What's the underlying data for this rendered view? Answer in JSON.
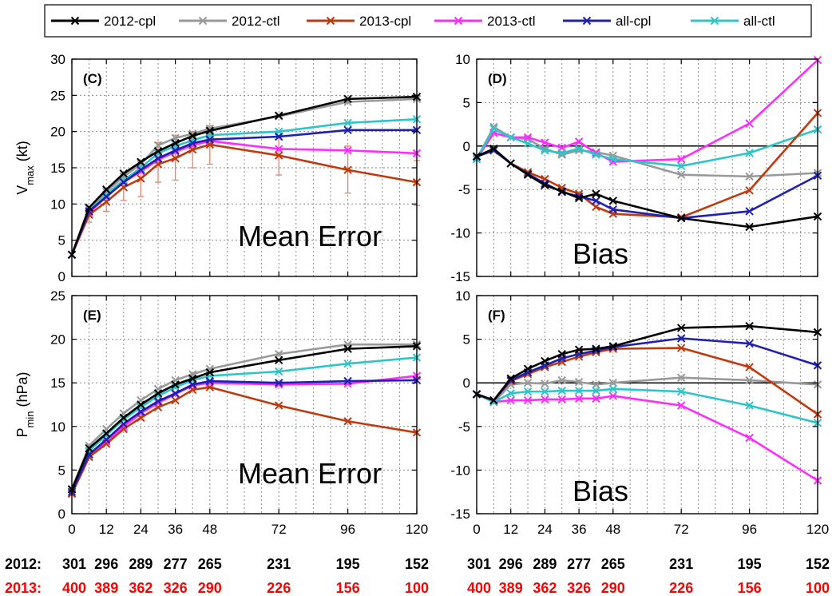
{
  "colors": {
    "2012-cpl": "#000000",
    "2012-ctl": "#999999",
    "2013-cpl": "#c0390f",
    "2013-ctl": "#ff2bff",
    "all-cpl": "#1f1fb4",
    "all-ctl": "#2ec4c8",
    "count_2012": "#000000",
    "count_2013": "#ff0000"
  },
  "legend": [
    "2012-cpl",
    "2012-ctl",
    "2013-cpl",
    "2013-ctl",
    "all-cpl",
    "all-ctl"
  ],
  "counts": {
    "label_2012": "2012:",
    "label_2013": "2013:",
    "hours": [
      0,
      12,
      24,
      36,
      48,
      72,
      96,
      120
    ],
    "values_2012": [
      "301",
      "296",
      "289",
      "277",
      "265",
      "231",
      "195",
      "152"
    ],
    "values_2013": [
      "400",
      "389",
      "362",
      "326",
      "290",
      "226",
      "156",
      "100"
    ]
  },
  "chart_data": [
    {
      "id": "C",
      "panel_label": "(C)",
      "type": "line",
      "annotation": "Mean Error",
      "ylabel_main": "V",
      "ylabel_sub": "max",
      "ylabel_unit": " (kt)",
      "xlim": [
        0,
        120
      ],
      "ylim": [
        0,
        30
      ],
      "xticks": [
        0,
        12,
        24,
        36,
        48,
        72,
        96,
        120
      ],
      "yticks": [
        0,
        5,
        10,
        15,
        20,
        25,
        30
      ],
      "x": [
        0,
        6,
        12,
        18,
        24,
        30,
        36,
        42,
        48,
        72,
        96,
        120
      ],
      "show_xlabels": false,
      "grid": true,
      "zero_line": false,
      "series": [
        {
          "name": "2012-cpl",
          "values": [
            3,
            9.5,
            12,
            14.2,
            15.8,
            17.3,
            18.4,
            19.4,
            20.1,
            22.2,
            24.5,
            24.8
          ]
        },
        {
          "name": "2012-ctl",
          "values": [
            3,
            9.3,
            11.7,
            13.8,
            15.5,
            18.1,
            19.1,
            19.7,
            20.4,
            22.1,
            24.1,
            24.5
          ]
        },
        {
          "name": "2013-cpl",
          "values": [
            3,
            8.5,
            10.3,
            12.3,
            13.5,
            15.5,
            16.3,
            17.5,
            18.2,
            16.7,
            14.7,
            13.0
          ],
          "error_low": [
            0,
            7.5,
            9.0,
            10.5,
            11.0,
            13.0,
            13.3,
            15.0,
            15.5,
            14.0,
            11.5,
            9.8
          ],
          "error_high": [
            0,
            9.5,
            11.6,
            14.0,
            16.0,
            18.5,
            19.5,
            20.0,
            20.8,
            19.5,
            18.0,
            16.0
          ]
        },
        {
          "name": "2013-ctl",
          "values": [
            3,
            8.8,
            11.0,
            13.0,
            14.5,
            16.1,
            17.2,
            18.1,
            18.7,
            17.6,
            17.4,
            17.0
          ]
        },
        {
          "name": "all-cpl",
          "values": [
            3,
            9.0,
            11.0,
            13.0,
            14.7,
            16.3,
            17.4,
            18.4,
            18.9,
            19.3,
            20.2,
            20.2
          ]
        },
        {
          "name": "all-ctl",
          "values": [
            3,
            9.0,
            11.3,
            13.3,
            15.0,
            17.0,
            18.0,
            18.8,
            19.5,
            20.0,
            21.2,
            21.7
          ]
        }
      ]
    },
    {
      "id": "D",
      "panel_label": "(D)",
      "type": "line",
      "annotation": "Bias",
      "ylabel_main": "",
      "ylabel_sub": "",
      "ylabel_unit": "",
      "xlim": [
        0,
        120
      ],
      "ylim": [
        -15,
        10
      ],
      "xticks": [
        0,
        12,
        24,
        36,
        48,
        72,
        96,
        120
      ],
      "yticks": [
        -15,
        -10,
        -5,
        0,
        5,
        10
      ],
      "x": [
        0,
        6,
        12,
        18,
        24,
        30,
        36,
        42,
        48,
        72,
        96,
        120
      ],
      "show_xlabels": false,
      "grid": true,
      "zero_line": true,
      "series": [
        {
          "name": "2012-cpl",
          "values": [
            -1.2,
            -0.3,
            -2.0,
            -3.3,
            -4.5,
            -5.2,
            -6.0,
            -5.5,
            -6.3,
            -8.3,
            -9.3,
            -8.1
          ]
        },
        {
          "name": "2012-ctl",
          "values": [
            -1.5,
            2.2,
            1.0,
            0.8,
            -0.3,
            -1.0,
            -0.5,
            -0.7,
            -1.1,
            -3.3,
            -3.5,
            -3.1
          ]
        },
        {
          "name": "2013-cpl",
          "values": [
            -1.2,
            -0.5,
            -2.0,
            -3.0,
            -3.8,
            -4.8,
            -5.5,
            -7.0,
            -7.8,
            -8.2,
            -5.1,
            3.8
          ]
        },
        {
          "name": "2013-ctl",
          "values": [
            -1.5,
            1.5,
            1.0,
            1.0,
            0.4,
            -0.2,
            0.5,
            -0.8,
            -1.8,
            -1.5,
            2.6,
            9.9
          ]
        },
        {
          "name": "all-cpl",
          "values": [
            -1.2,
            -0.5,
            -2.0,
            -3.2,
            -4.3,
            -5.3,
            -5.8,
            -6.3,
            -7.3,
            -8.3,
            -7.5,
            -3.4
          ]
        },
        {
          "name": "all-ctl",
          "values": [
            -1.5,
            2.0,
            1.0,
            0.3,
            -0.5,
            -0.8,
            -0.3,
            -1.0,
            -1.5,
            -2.3,
            -0.8,
            1.9
          ]
        }
      ]
    },
    {
      "id": "E",
      "panel_label": "(E)",
      "type": "line",
      "annotation": "Mean Error",
      "ylabel_main": "P",
      "ylabel_sub": "min",
      "ylabel_unit": " (hPa)",
      "xlim": [
        0,
        120
      ],
      "ylim": [
        0,
        25
      ],
      "xticks": [
        0,
        12,
        24,
        36,
        48,
        72,
        96,
        120
      ],
      "yticks": [
        0,
        5,
        10,
        15,
        20,
        25
      ],
      "x": [
        0,
        6,
        12,
        18,
        24,
        30,
        36,
        42,
        48,
        72,
        96,
        120
      ],
      "show_xlabels": true,
      "grid": true,
      "zero_line": false,
      "series": [
        {
          "name": "2012-cpl",
          "values": [
            2.8,
            7.5,
            9.2,
            11.0,
            12.5,
            13.8,
            14.8,
            15.5,
            16.2,
            17.6,
            18.9,
            19.2
          ]
        },
        {
          "name": "2012-ctl",
          "values": [
            2.8,
            7.8,
            9.7,
            11.5,
            13.0,
            14.3,
            15.3,
            16.0,
            16.6,
            18.3,
            19.4,
            19.4
          ]
        },
        {
          "name": "2013-cpl",
          "values": [
            2.3,
            6.5,
            8.0,
            9.7,
            11.0,
            12.2,
            13.0,
            14.2,
            14.5,
            12.4,
            10.6,
            9.3
          ]
        },
        {
          "name": "2013-ctl",
          "values": [
            2.3,
            6.5,
            8.3,
            10.0,
            11.5,
            12.7,
            13.7,
            14.7,
            15.0,
            14.8,
            14.9,
            15.8
          ]
        },
        {
          "name": "all-cpl",
          "values": [
            2.5,
            6.8,
            8.5,
            10.3,
            11.7,
            12.9,
            13.8,
            14.8,
            15.2,
            15.0,
            15.2,
            15.3
          ]
        },
        {
          "name": "all-ctl",
          "values": [
            2.8,
            7.2,
            9.0,
            10.8,
            12.2,
            13.5,
            14.5,
            15.3,
            15.8,
            16.3,
            17.2,
            17.9
          ]
        }
      ]
    },
    {
      "id": "F",
      "panel_label": "(F)",
      "type": "line",
      "annotation": "Bias",
      "ylabel_main": "",
      "ylabel_sub": "",
      "ylabel_unit": "",
      "xlim": [
        0,
        120
      ],
      "ylim": [
        -15,
        10
      ],
      "xticks": [
        0,
        12,
        24,
        36,
        48,
        72,
        96,
        120
      ],
      "yticks": [
        -15,
        -10,
        -5,
        0,
        5,
        10
      ],
      "x": [
        0,
        6,
        12,
        18,
        24,
        30,
        36,
        42,
        48,
        72,
        96,
        120
      ],
      "show_xlabels": true,
      "grid": true,
      "zero_line": true,
      "series": [
        {
          "name": "2012-cpl",
          "values": [
            -1.3,
            -2.0,
            0.5,
            1.6,
            2.5,
            3.3,
            3.8,
            3.9,
            4.2,
            6.3,
            6.5,
            5.8
          ]
        },
        {
          "name": "2012-ctl",
          "values": [
            -1.3,
            -2.2,
            -0.2,
            0.0,
            -0.1,
            0.3,
            0.1,
            -0.2,
            0.0,
            0.6,
            0.3,
            -0.2
          ]
        },
        {
          "name": "2013-cpl",
          "values": [
            -1.3,
            -2.0,
            0.2,
            1.0,
            1.8,
            2.4,
            3.0,
            3.5,
            3.9,
            4.0,
            1.8,
            -3.6
          ]
        },
        {
          "name": "2013-ctl",
          "values": [
            -1.3,
            -2.2,
            -2.0,
            -2.0,
            -1.9,
            -1.9,
            -1.8,
            -1.8,
            -1.5,
            -2.6,
            -6.3,
            -11.2
          ]
        },
        {
          "name": "all-cpl",
          "values": [
            -1.3,
            -2.0,
            0.3,
            1.2,
            2.0,
            2.8,
            3.3,
            3.7,
            4.1,
            5.1,
            4.5,
            2.0
          ]
        },
        {
          "name": "all-ctl",
          "values": [
            -1.3,
            -2.2,
            -1.2,
            -1.0,
            -1.0,
            -0.9,
            -0.9,
            -0.9,
            -0.7,
            -1.0,
            -2.6,
            -4.6
          ]
        }
      ]
    }
  ]
}
